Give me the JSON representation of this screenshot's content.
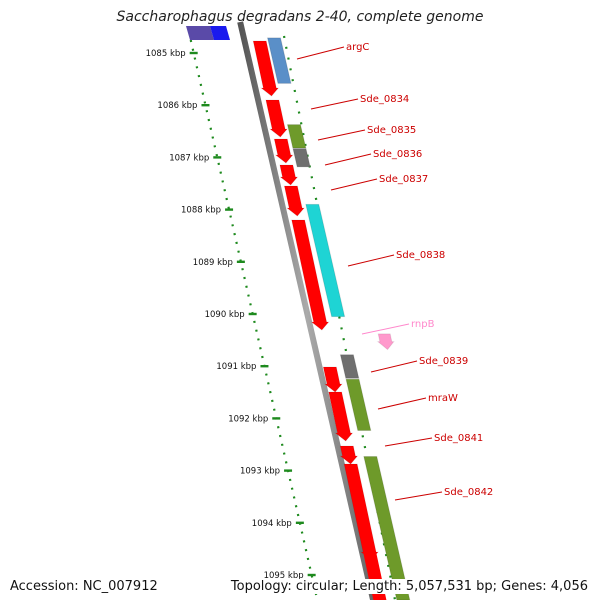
{
  "title": "Saccharophagus degradans 2-40, complete genome",
  "footer": {
    "accession": "Accession: NC_007912",
    "summary": "Topology: circular; Length: 5,057,531 bp; Genes: 4,056"
  },
  "colors": {
    "red": "#ff0000",
    "blue": "#5a8fc8",
    "olive": "#6e9a2a",
    "gray": "#6f6f6f",
    "cyan": "#1ed4d4",
    "pink": "#ff99cc",
    "tick": "#1e8a1e",
    "label": "#cc0000",
    "label_rna": "#ff88cc"
  },
  "ticks": [
    {
      "label": "1085 kbp",
      "kbp": 1085
    },
    {
      "label": "1086 kbp",
      "kbp": 1086
    },
    {
      "label": "1087 kbp",
      "kbp": 1087
    },
    {
      "label": "1088 kbp",
      "kbp": 1088
    },
    {
      "label": "1089 kbp",
      "kbp": 1089
    },
    {
      "label": "1090 kbp",
      "kbp": 1090
    },
    {
      "label": "1091 kbp",
      "kbp": 1091
    },
    {
      "label": "1092 kbp",
      "kbp": 1092
    },
    {
      "label": "1093 kbp",
      "kbp": 1093
    },
    {
      "label": "1094 kbp",
      "kbp": 1094
    },
    {
      "label": "1095 kbp",
      "kbp": 1095
    }
  ],
  "genes": [
    {
      "name": "argC",
      "start": 1084.96,
      "end": 1085.83,
      "color": "blue",
      "rna": false
    },
    {
      "name": "Sde_0834",
      "start": 1085.9,
      "end": 1086.58,
      "color": "red",
      "rna": false
    },
    {
      "name": "Sde_0835",
      "start": 1086.62,
      "end": 1087.07,
      "color": "olive",
      "rna": false
    },
    {
      "name": "Sde_0836",
      "start": 1087.08,
      "end": 1087.43,
      "color": "gray",
      "rna": false
    },
    {
      "name": "Sde_0837",
      "start": 1087.44,
      "end": 1088.05,
      "color": "red",
      "rna": false
    },
    {
      "name": "Sde_0838",
      "start": 1088.15,
      "end": 1090.3,
      "color": "cyan",
      "rna": false
    },
    {
      "name": "rnpB",
      "start": 1090.42,
      "end": 1090.72,
      "color": "pink",
      "rna": true
    },
    {
      "name": "Sde_0839",
      "start": 1091.03,
      "end": 1091.48,
      "color": "gray",
      "rna": false
    },
    {
      "name": "mraW",
      "start": 1091.5,
      "end": 1092.48,
      "color": "olive",
      "rna": false
    },
    {
      "name": "Sde_0841",
      "start": 1092.58,
      "end": 1092.93,
      "color": "red",
      "rna": false
    },
    {
      "name": "Sde_0842",
      "start": 1092.98,
      "end": 1095.8,
      "color": "olive",
      "rna": false
    }
  ]
}
